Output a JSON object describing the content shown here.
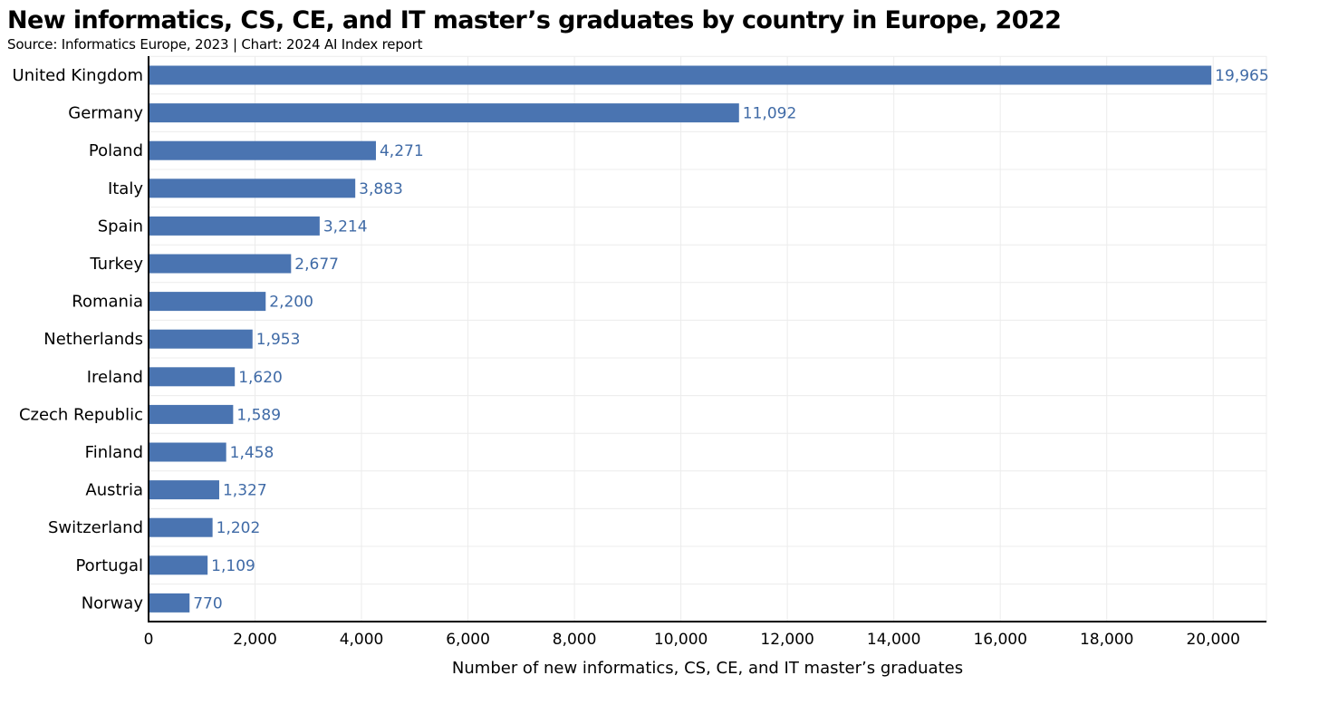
{
  "title": "New informatics, CS, CE, and IT master’s graduates by country in Europe, 2022",
  "subtitle": "Source: Informatics Europe, 2023 | Chart: 2024 AI Index report",
  "colors": {
    "bar": "#4a74b1",
    "data_label": "#3f6aa6",
    "grid": "#ececec",
    "axis": "#000000"
  },
  "chart_data": {
    "type": "bar",
    "orientation": "horizontal",
    "categories": [
      "United Kingdom",
      "Germany",
      "Poland",
      "Italy",
      "Spain",
      "Turkey",
      "Romania",
      "Netherlands",
      "Ireland",
      "Czech Republic",
      "Finland",
      "Austria",
      "Switzerland",
      "Portugal",
      "Norway"
    ],
    "values": [
      19965,
      11092,
      4271,
      3883,
      3214,
      2677,
      2200,
      1953,
      1620,
      1589,
      1458,
      1327,
      1202,
      1109,
      770
    ],
    "value_labels": [
      "19,965",
      "11,092",
      "4,271",
      "3,883",
      "3,214",
      "2,677",
      "2,200",
      "1,953",
      "1,620",
      "1,589",
      "1,458",
      "1,327",
      "1,202",
      "1,109",
      "770"
    ],
    "xlabel": "Number of new informatics, CS, CE, and IT master’s graduates",
    "ylabel": "",
    "xlim": [
      0,
      21000
    ],
    "x_ticks": [
      0,
      2000,
      4000,
      6000,
      8000,
      10000,
      12000,
      14000,
      16000,
      18000,
      20000
    ],
    "x_tick_labels": [
      "0",
      "2,000",
      "4,000",
      "6,000",
      "8,000",
      "10,000",
      "12,000",
      "14,000",
      "16,000",
      "18,000",
      "20,000"
    ],
    "grid": true,
    "legend": "none"
  }
}
